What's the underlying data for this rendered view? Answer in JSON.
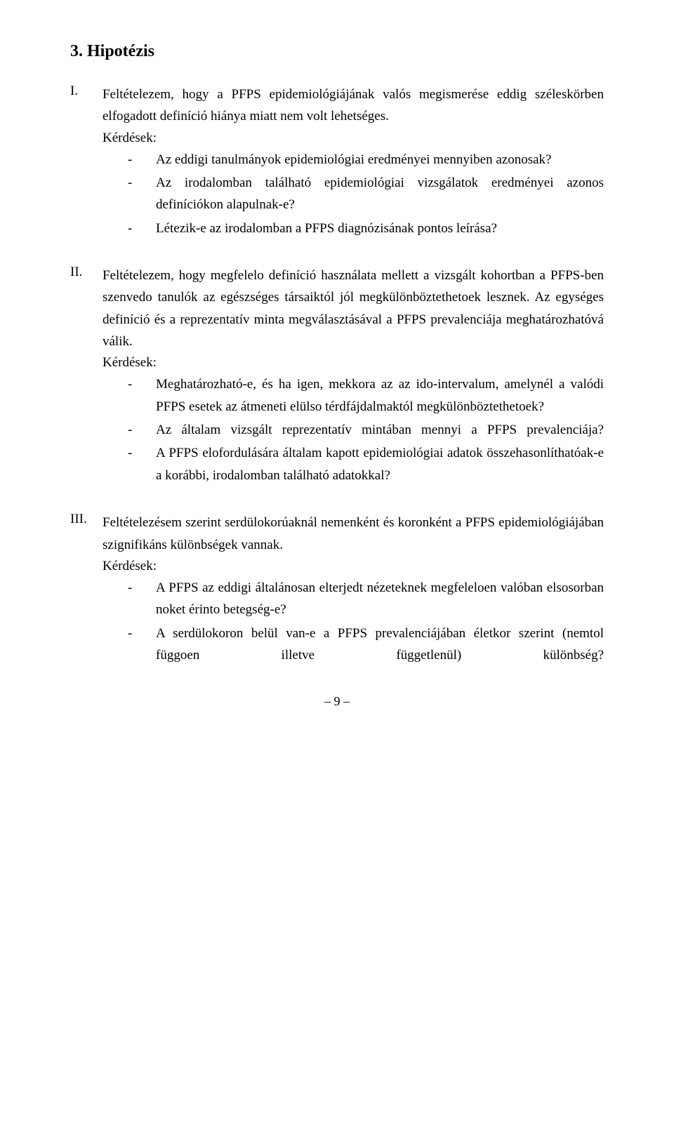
{
  "heading": "3. Hipotézis",
  "sections": [
    {
      "roman": "I.",
      "intro": "Feltételezem, hogy a PFPS epidemiológiájának valós megismerése eddig széleskörben elfogadott definíció hiánya miatt nem volt lehetséges.",
      "kerdesek_label": "Kérdések:",
      "bullets": [
        "Az eddigi tanulmányok epidemiológiai eredményei mennyiben azonosak?",
        "Az irodalomban található epidemiológiai vizsgálatok eredményei azonos definíciókon alapulnak-e?",
        "Létezik-e az irodalomban a PFPS diagnózisának pontos leírása?"
      ]
    },
    {
      "roman": "II.",
      "intro": "Feltételezem, hogy megfelelo definíció használata mellett a vizsgált kohortban a PFPS-ben szenvedo tanulók az egészséges társaiktól jól megkülönböztethetoek lesznek. Az egységes definíció és a reprezentatív minta megválasztásával a PFPS prevalenciája meghatározhatóvá válik.",
      "kerdesek_label": "Kérdések:",
      "bullets": [
        "Meghatározható-e, és ha igen, mekkora az az ido-intervalum, amelynél a valódi PFPS esetek az átmeneti elülso térdfájdalmaktól megkülönböztet­hetoek?",
        "Az általam vizsgált reprezentatív mintában mennyi a PFPS prevalenciája?",
        "A PFPS elofordulására általam kapott epidemiológiai adatok összehasonlíthatóak-e a korábbi, irodalomban található adatokkal?"
      ]
    },
    {
      "roman": "III.",
      "intro": "Feltételezésem szerint serdülokorúaknál nemenként és koronként a PFPS epidemiológiájában szignifikáns különbségek vannak.",
      "kerdesek_label": "Kérdések:",
      "bullets": [
        "A PFPS az eddigi általánosan elterjedt nézeteknek megfeleloen valóban elsosorban noket érinto betegség-e?",
        "A serdülokoron belül van-e a PFPS prevalenciájában életkor szerint (nemtol függoen illetve függetlenül) különbség?"
      ]
    }
  ],
  "bullet_justify_spread": {
    "1": [
      1
    ],
    "2": [
      1
    ]
  },
  "page_number": "– 9 –"
}
